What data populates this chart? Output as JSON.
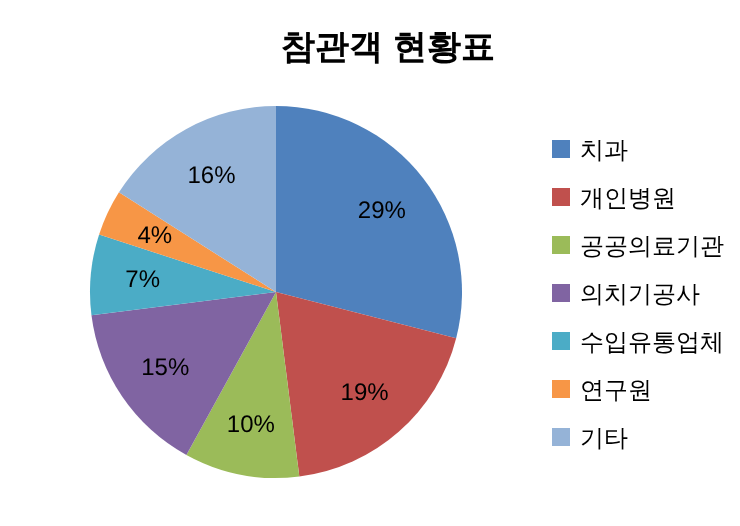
{
  "chart_data": {
    "type": "pie",
    "title": "참관객 현황표",
    "categories": [
      "치과",
      "개인병원",
      "공공의료기관",
      "의치기공사",
      "수입유통업체",
      "연구원",
      "기타"
    ],
    "values": [
      29,
      19,
      10,
      15,
      7,
      4,
      16
    ],
    "value_labels": [
      "29%",
      "19%",
      "10%",
      "15%",
      "7%",
      "4%",
      "16%"
    ],
    "colors": [
      "#4f81bd",
      "#c0504d",
      "#9bbb59",
      "#8064a2",
      "#4bacc6",
      "#f79646",
      "#95b3d7"
    ],
    "legend": "right"
  }
}
